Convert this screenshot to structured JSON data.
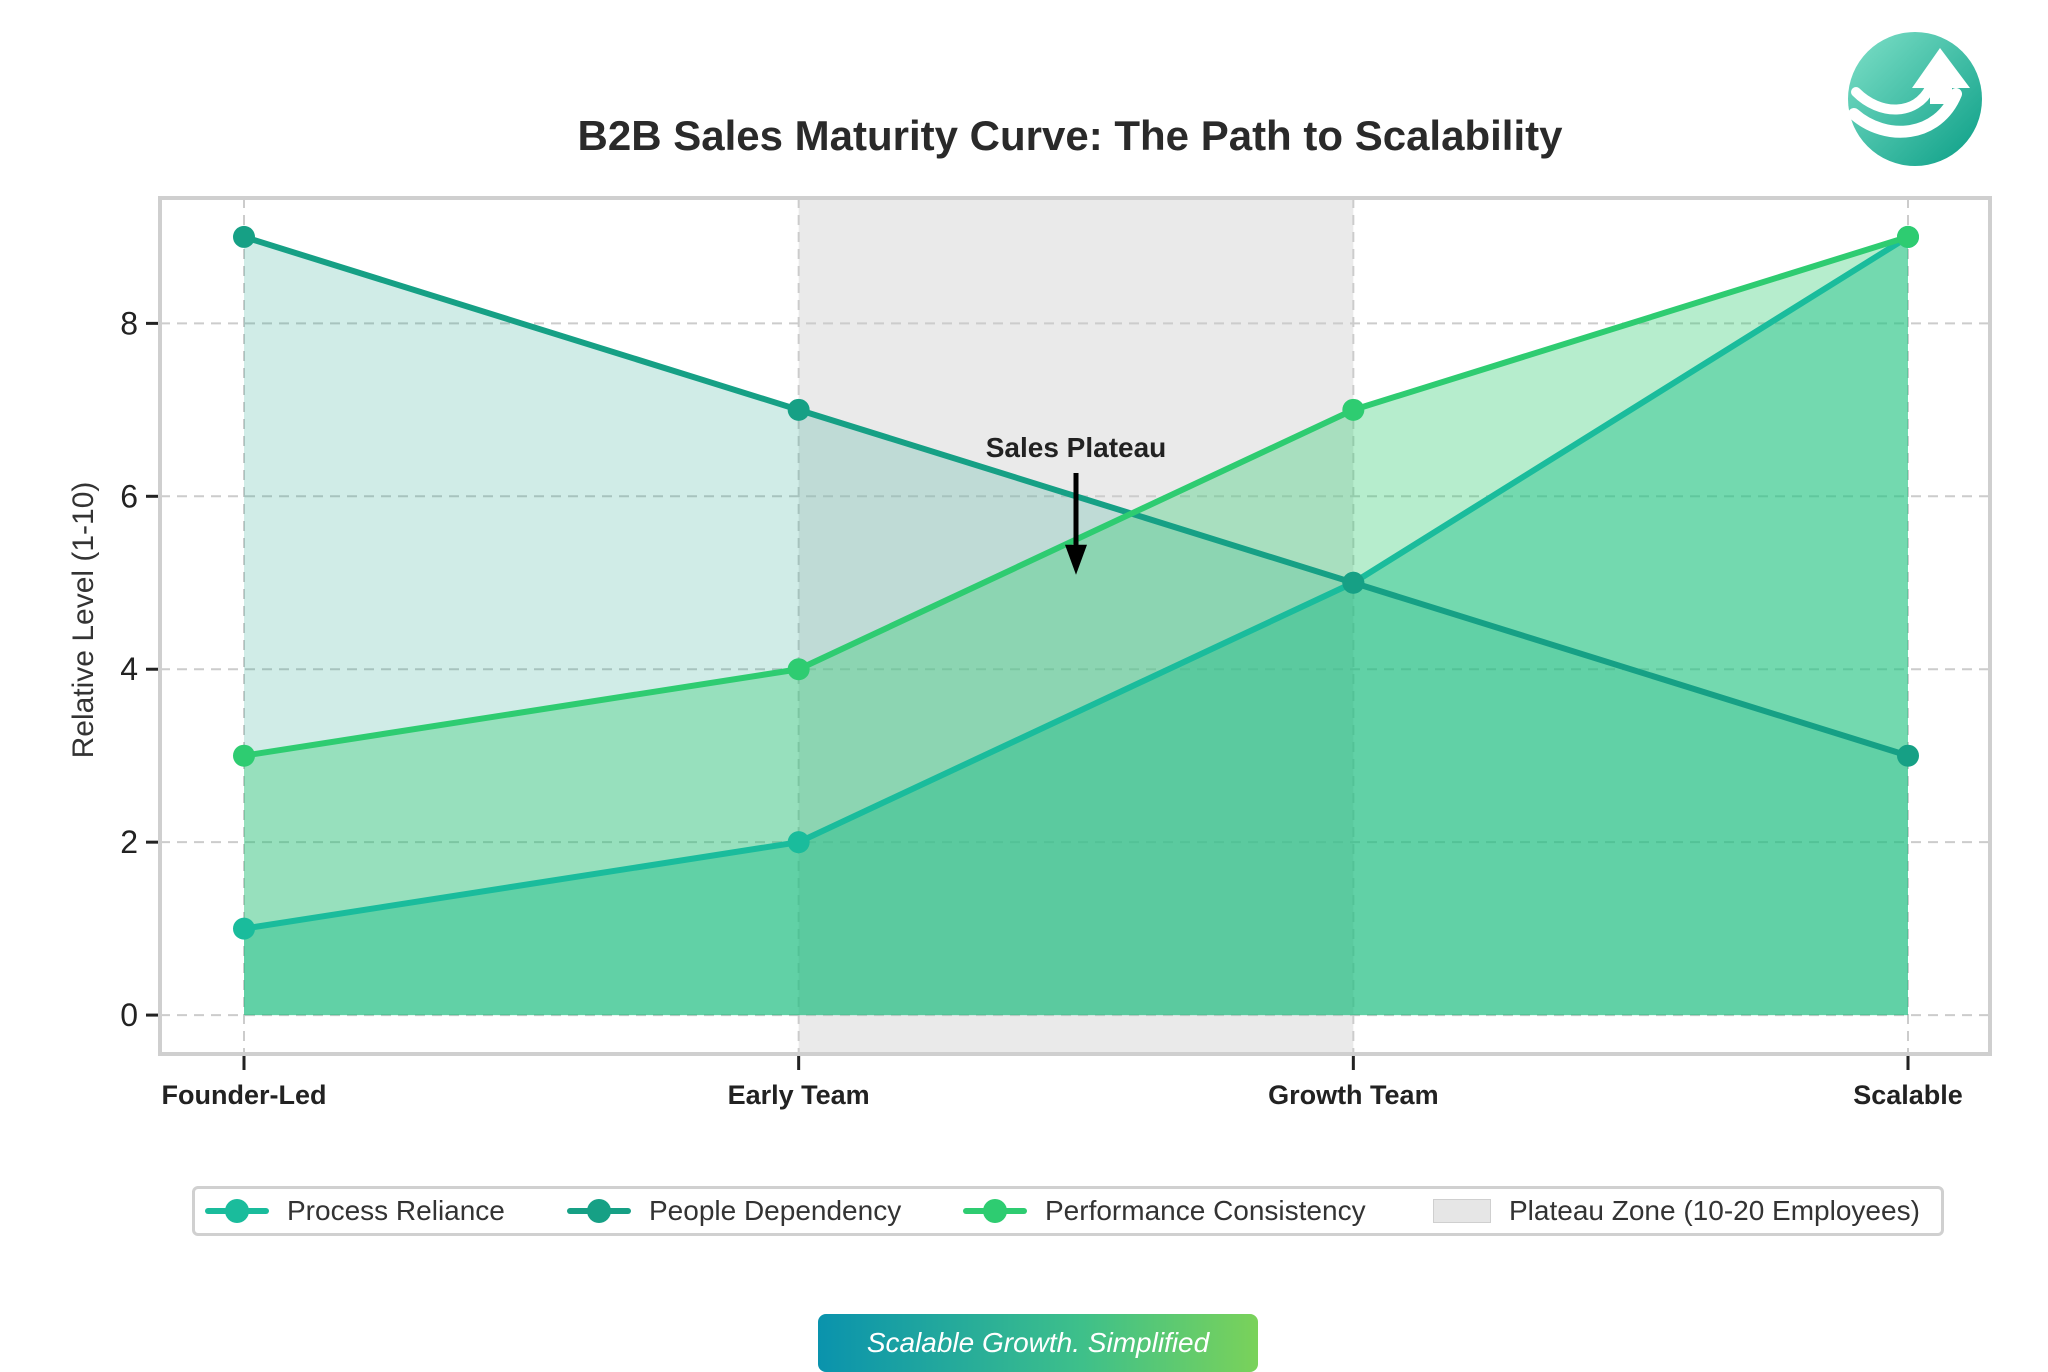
{
  "chart_data": {
    "type": "area",
    "title": "B2B Sales Maturity Curve: The Path to Scalability",
    "xlabel": "",
    "ylabel": "Relative Level (1-10)",
    "categories": [
      "Founder-Led",
      "Early Team",
      "Growth Team",
      "Scalable"
    ],
    "y_ticks": [
      "0",
      "2",
      "4",
      "6",
      "8"
    ],
    "ylim": [
      -0.45,
      9.45
    ],
    "grid": true,
    "legend_position": "bottom",
    "series": [
      {
        "name": "Process Reliance",
        "values": [
          1,
          2,
          5,
          9
        ],
        "color": "#1abc9c"
      },
      {
        "name": "People Dependency",
        "values": [
          9,
          7,
          5,
          3
        ],
        "color": "#16a085"
      },
      {
        "name": "Performance Consistency",
        "values": [
          3,
          4,
          7,
          9
        ],
        "color": "#2ecc71"
      }
    ],
    "shaded_region": {
      "name": "Plateau Zone (10-20 Employees)",
      "from": "Early Team",
      "to": "Growth Team",
      "color": "#e6e6e6"
    },
    "annotation": {
      "text": "Sales Plateau",
      "x": 1.5,
      "y": 5.0
    }
  },
  "tagline": "Scalable Growth. Simplified",
  "logo_icon": "growth-arrow-logo-icon"
}
